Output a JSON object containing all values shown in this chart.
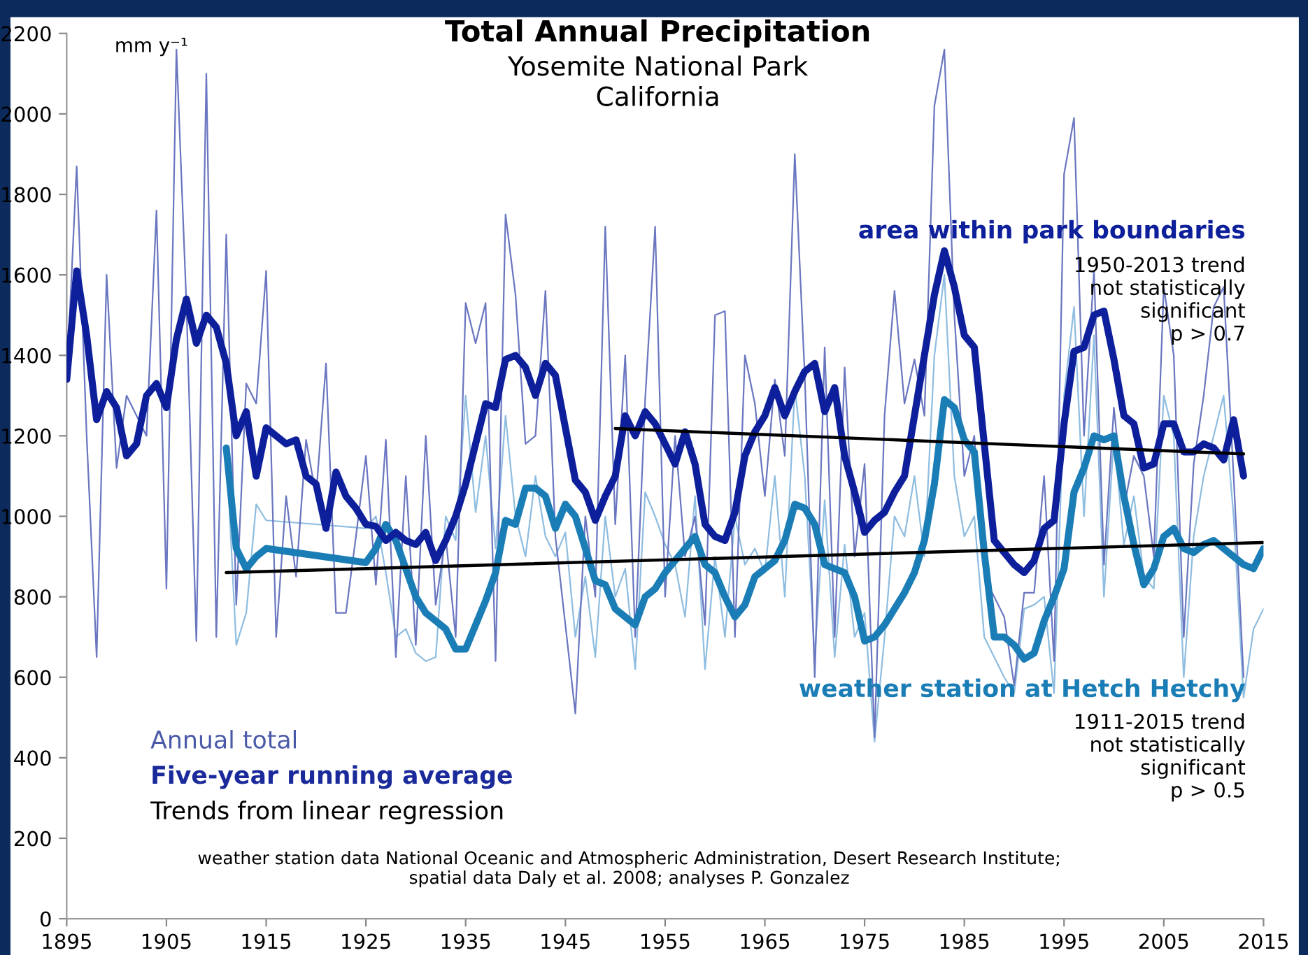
{
  "chart_data": {
    "type": "line",
    "title": "Total Annual Precipitation",
    "subtitle": "Yosemite National Park\nCalifornia",
    "ylabel": "mm y⁻¹",
    "xlim": [
      1895,
      2015
    ],
    "xticks": [
      1895,
      1905,
      1915,
      1925,
      1935,
      1945,
      1955,
      1965,
      1975,
      1985,
      1995,
      2005,
      2015
    ],
    "ylim": [
      0,
      2200
    ],
    "yticks": [
      0,
      200,
      400,
      600,
      800,
      1000,
      1200,
      1400,
      1600,
      1800,
      2000,
      2200
    ],
    "grid": false,
    "legend": false,
    "marker": "none",
    "line_style": "solid",
    "annotations": [
      "Annual total",
      "Five-year running average",
      "Trends from linear regression",
      "1950-2013 trend\nnot statistically\nsignificant\np > 0.7",
      "1911-2015 trend\nnot statistically\nsignificant\np > 0.5",
      "weather station data National Oceanic and Atmospheric Administration, Desert Research Institute;\nspatial data Daly et al. 2008; analyses P. Gonzalez"
    ],
    "series": [
      {
        "color": "#6a76c0",
        "x": [
          1895,
          1896,
          1897,
          1898,
          1899,
          1900,
          1901,
          1902,
          1903,
          1904,
          1905,
          1906,
          1907,
          1908,
          1909,
          1910,
          1911,
          1912,
          1913,
          1914,
          1915,
          1916,
          1917,
          1918,
          1919,
          1920,
          1921,
          1922,
          1923,
          1924,
          1925,
          1926,
          1927,
          1928,
          1929,
          1930,
          1931,
          1932,
          1933,
          1934,
          1935,
          1936,
          1937,
          1938,
          1939,
          1940,
          1941,
          1942,
          1943,
          1944,
          1945,
          1946,
          1947,
          1948,
          1949,
          1950,
          1951,
          1952,
          1953,
          1954,
          1955,
          1956,
          1957,
          1958,
          1959,
          1960,
          1961,
          1962,
          1963,
          1964,
          1965,
          1966,
          1967,
          1968,
          1969,
          1970,
          1971,
          1972,
          1973,
          1974,
          1975,
          1976,
          1977,
          1978,
          1979,
          1980,
          1981,
          1982,
          1983,
          1984,
          1985,
          1986,
          1987,
          1988,
          1989,
          1990,
          1991,
          1992,
          1993,
          1994,
          1995,
          1996,
          1997,
          1998,
          1999,
          2000,
          2001,
          2002,
          2003,
          2004,
          2005,
          2006,
          2007,
          2008,
          2009,
          2010,
          2011,
          2012,
          2013
        ],
        "values": [
          1340,
          1870,
          1200,
          650,
          1600,
          1120,
          1300,
          1250,
          1200,
          1760,
          820,
          2160,
          1530,
          690,
          2100,
          700,
          1700,
          780,
          1330,
          1280,
          1610,
          700,
          1050,
          850,
          1190,
          1050,
          1380,
          760,
          760,
          950,
          1150,
          830,
          1190,
          650,
          1100,
          680,
          1200,
          780,
          950,
          700,
          1530,
          1430,
          1530,
          640,
          1750,
          1550,
          1180,
          1200,
          1560,
          950,
          730,
          510,
          1000,
          800,
          1720,
          980,
          1400,
          700,
          1290,
          1720,
          800,
          1200,
          900,
          1000,
          730,
          1500,
          1510,
          700,
          1400,
          1280,
          1050,
          1340,
          1150,
          1900,
          1350,
          600,
          1420,
          700,
          1370,
          900,
          1130,
          450,
          1250,
          1560,
          1280,
          1390,
          1250,
          2020,
          2160,
          1500,
          1100,
          1200,
          850,
          800,
          750,
          580,
          810,
          810,
          1100,
          640,
          1850,
          1990,
          1200,
          1610,
          880,
          1270,
          1020,
          1150,
          1100,
          900,
          1570,
          1400,
          700,
          1130,
          1300,
          1520,
          1570,
          1100,
          600
        ]
      },
      {
        "color": "#8fbde0",
        "x": [
          1911,
          1912,
          1913,
          1914,
          1915,
          1925,
          1926,
          1927,
          1928,
          1929,
          1930,
          1931,
          1932,
          1933,
          1934,
          1935,
          1936,
          1937,
          1938,
          1939,
          1940,
          1941,
          1942,
          1943,
          1944,
          1945,
          1946,
          1947,
          1948,
          1949,
          1950,
          1951,
          1952,
          1953,
          1954,
          1955,
          1956,
          1957,
          1958,
          1959,
          1960,
          1961,
          1962,
          1963,
          1964,
          1965,
          1966,
          1967,
          1968,
          1969,
          1970,
          1971,
          1972,
          1973,
          1974,
          1975,
          1976,
          1977,
          1978,
          1979,
          1980,
          1981,
          1982,
          1983,
          1984,
          1985,
          1986,
          1987,
          1988,
          1989,
          1990,
          1991,
          1992,
          1993,
          1994,
          1995,
          1996,
          1997,
          1998,
          1999,
          2000,
          2001,
          2002,
          2003,
          2004,
          2005,
          2006,
          2007,
          2008,
          2009,
          2010,
          2011,
          2012,
          2013,
          2014,
          2015
        ],
        "values": [
          1170,
          680,
          760,
          1030,
          990,
          970,
          1000,
          860,
          700,
          720,
          660,
          640,
          650,
          1000,
          940,
          1300,
          1010,
          1200,
          920,
          1250,
          1000,
          900,
          1100,
          950,
          900,
          960,
          700,
          850,
          650,
          1000,
          800,
          870,
          620,
          1060,
          1000,
          930,
          880,
          750,
          1050,
          620,
          900,
          700,
          1000,
          880,
          920,
          860,
          1100,
          800,
          1320,
          1100,
          650,
          1040,
          650,
          930,
          700,
          760,
          440,
          700,
          1000,
          950,
          1100,
          900,
          1400,
          1600,
          1100,
          950,
          1000,
          700,
          650,
          600,
          560,
          770,
          780,
          800,
          560,
          1300,
          1520,
          1000,
          1450,
          800,
          1200,
          930,
          1050,
          850,
          820,
          1300,
          1200,
          600,
          950,
          1100,
          1200,
          1300,
          1000,
          550,
          720,
          770
        ]
      },
      {
        "name": "area within park boundaries",
        "color": "#0d1f9a",
        "x": [
          1895,
          1896,
          1897,
          1898,
          1899,
          1900,
          1901,
          1902,
          1903,
          1904,
          1905,
          1906,
          1907,
          1908,
          1909,
          1910,
          1911,
          1912,
          1913,
          1914,
          1915,
          1916,
          1917,
          1918,
          1919,
          1920,
          1921,
          1922,
          1923,
          1924,
          1925,
          1926,
          1927,
          1928,
          1929,
          1930,
          1931,
          1932,
          1933,
          1934,
          1935,
          1936,
          1937,
          1938,
          1939,
          1940,
          1941,
          1942,
          1943,
          1944,
          1945,
          1946,
          1947,
          1948,
          1949,
          1950,
          1951,
          1952,
          1953,
          1954,
          1955,
          1956,
          1957,
          1958,
          1959,
          1960,
          1961,
          1962,
          1963,
          1964,
          1965,
          1966,
          1967,
          1968,
          1969,
          1970,
          1971,
          1972,
          1973,
          1974,
          1975,
          1976,
          1977,
          1978,
          1979,
          1980,
          1981,
          1982,
          1983,
          1984,
          1985,
          1986,
          1987,
          1988,
          1989,
          1990,
          1991,
          1992,
          1993,
          1994,
          1995,
          1996,
          1997,
          1998,
          1999,
          2000,
          2001,
          2002,
          2003,
          2004,
          2005,
          2006,
          2007,
          2008,
          2009,
          2010,
          2011,
          2012,
          2013
        ],
        "values": [
          1340,
          1610,
          1450,
          1240,
          1310,
          1270,
          1150,
          1180,
          1300,
          1330,
          1270,
          1440,
          1540,
          1430,
          1500,
          1470,
          1380,
          1200,
          1260,
          1100,
          1220,
          1200,
          1180,
          1190,
          1100,
          1080,
          970,
          1110,
          1050,
          1020,
          980,
          975,
          940,
          960,
          940,
          930,
          960,
          890,
          940,
          1000,
          1080,
          1180,
          1280,
          1270,
          1390,
          1400,
          1370,
          1300,
          1380,
          1350,
          1220,
          1090,
          1060,
          990,
          1050,
          1100,
          1250,
          1200,
          1260,
          1230,
          1180,
          1130,
          1210,
          1130,
          980,
          950,
          940,
          1010,
          1150,
          1210,
          1250,
          1320,
          1250,
          1310,
          1360,
          1380,
          1260,
          1320,
          1150,
          1060,
          960,
          990,
          1010,
          1060,
          1100,
          1250,
          1400,
          1550,
          1660,
          1570,
          1450,
          1420,
          1180,
          940,
          910,
          880,
          860,
          890,
          970,
          990,
          1230,
          1410,
          1420,
          1500,
          1510,
          1390,
          1250,
          1230,
          1120,
          1130,
          1230,
          1230,
          1160,
          1160,
          1180,
          1170,
          1140,
          1240,
          1100
        ]
      },
      {
        "name": "weather station at Hetch Hetchy",
        "color": "#1a7db5",
        "x": [
          1911,
          1912,
          1913,
          1914,
          1915,
          1925,
          1926,
          1927,
          1928,
          1929,
          1930,
          1931,
          1932,
          1933,
          1934,
          1935,
          1936,
          1937,
          1938,
          1939,
          1940,
          1941,
          1942,
          1943,
          1944,
          1945,
          1946,
          1947,
          1948,
          1949,
          1950,
          1951,
          1952,
          1953,
          1954,
          1955,
          1956,
          1957,
          1958,
          1959,
          1960,
          1961,
          1962,
          1963,
          1964,
          1965,
          1966,
          1967,
          1968,
          1969,
          1970,
          1971,
          1972,
          1973,
          1974,
          1975,
          1976,
          1977,
          1978,
          1979,
          1980,
          1981,
          1982,
          1983,
          1984,
          1985,
          1986,
          1987,
          1988,
          1989,
          1990,
          1991,
          1992,
          1993,
          1994,
          1995,
          1996,
          1997,
          1998,
          1999,
          2000,
          2001,
          2002,
          2003,
          2004,
          2005,
          2006,
          2007,
          2008,
          2009,
          2010,
          2011,
          2012,
          2013,
          2014,
          2015
        ],
        "values": [
          1170,
          920,
          870,
          900,
          920,
          885,
          920,
          980,
          940,
          870,
          800,
          760,
          740,
          720,
          670,
          670,
          730,
          790,
          860,
          990,
          980,
          1070,
          1070,
          1050,
          970,
          1030,
          1000,
          920,
          840,
          830,
          770,
          750,
          730,
          800,
          820,
          860,
          890,
          920,
          950,
          880,
          860,
          800,
          750,
          780,
          850,
          870,
          890,
          940,
          1030,
          1020,
          980,
          880,
          870,
          860,
          800,
          690,
          700,
          730,
          770,
          810,
          860,
          940,
          1080,
          1290,
          1270,
          1190,
          1160,
          910,
          700,
          700,
          680,
          645,
          660,
          740,
          800,
          870,
          1060,
          1120,
          1200,
          1190,
          1200,
          1050,
          930,
          830,
          870,
          950,
          970,
          920,
          910,
          930,
          940,
          920,
          900,
          880,
          870,
          920
        ]
      },
      {
        "color": "#000000",
        "x": [
          1950,
          2013
        ],
        "values": [
          1218,
          1155
        ]
      },
      {
        "color": "#000000",
        "x": [
          1911,
          2015
        ],
        "values": [
          860,
          935
        ]
      }
    ]
  }
}
